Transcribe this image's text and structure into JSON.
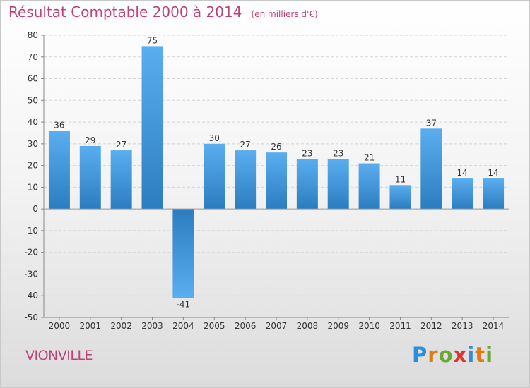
{
  "header": {
    "title": "Résultat Comptable 2000 à 2014",
    "subtitle": "(en milliers d'€)"
  },
  "footer": {
    "commune": "VIONVILLE",
    "logo_letters": [
      "P",
      "r",
      "o",
      "x",
      "i",
      "t",
      "i"
    ],
    "logo_colors": [
      "#2a8fd8",
      "#e07a16",
      "#6aa832",
      "#e0332c",
      "#2a8fd8",
      "#e07a16",
      "#6aa832"
    ]
  },
  "colors": {
    "bar_top": "#5aaef0",
    "bar_bottom": "#2b7dc0",
    "title": "#c0407a",
    "grid": "#d4d4d4",
    "axis": "#888888",
    "text": "#333333"
  },
  "chart_data": {
    "type": "bar",
    "title": "Résultat Comptable 2000 à 2014",
    "subtitle": "(en milliers d'€)",
    "xlabel": "",
    "ylabel": "",
    "ylim": [
      -50,
      80
    ],
    "yticks": [
      80,
      70,
      60,
      50,
      40,
      30,
      20,
      10,
      0,
      -10,
      -20,
      -30,
      -40,
      -50
    ],
    "grid": "horizontal dashed",
    "categories": [
      "2000",
      "2001",
      "2002",
      "2003",
      "2004",
      "2005",
      "2006",
      "2007",
      "2008",
      "2009",
      "2010",
      "2011",
      "2012",
      "2013",
      "2014"
    ],
    "values": [
      36,
      29,
      27,
      75,
      -41,
      30,
      27,
      26,
      23,
      23,
      21,
      11,
      37,
      14,
      14
    ]
  }
}
